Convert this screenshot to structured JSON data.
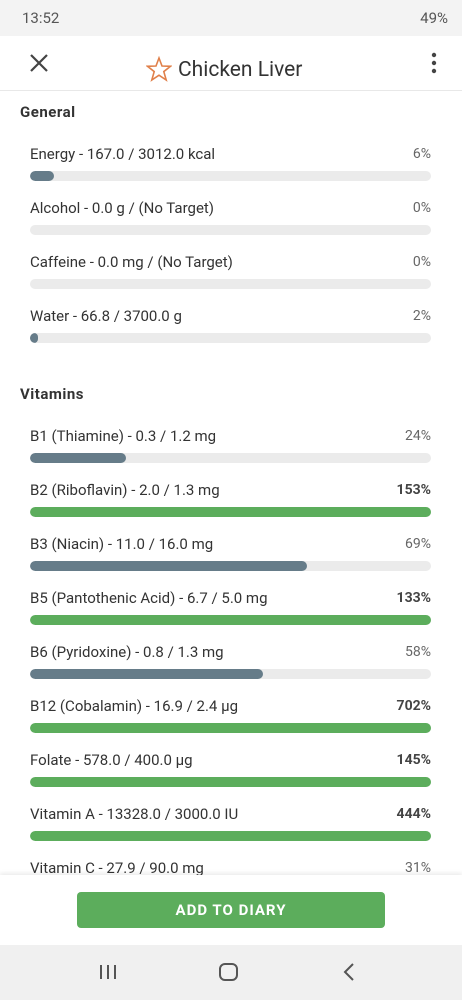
{
  "status_bar": {
    "time": "13:52",
    "battery": "49%"
  },
  "header": {
    "title": "Chicken Liver"
  },
  "sections": [
    {
      "title": "General",
      "items": [
        {
          "label": "Energy - 167.0 / 3012.0 kcal",
          "percent": {
            "value": 6,
            "label": "6%"
          }
        },
        {
          "label": "Alcohol - 0.0 g / (No Target)",
          "percent": {
            "value": 0,
            "label": "0%"
          }
        },
        {
          "label": "Caffeine - 0.0 mg / (No Target)",
          "percent": {
            "value": 0,
            "label": "0%"
          }
        },
        {
          "label": "Water - 66.8 / 3700.0 g",
          "percent": {
            "value": 2,
            "label": "2%"
          }
        }
      ]
    },
    {
      "title": "Vitamins",
      "items": [
        {
          "label": "B1 (Thiamine) - 0.3 / 1.2 mg",
          "percent": {
            "value": 24,
            "label": "24%"
          }
        },
        {
          "label": "B2 (Riboflavin) - 2.0 / 1.3 mg",
          "percent": {
            "value": 153,
            "label": "153%"
          }
        },
        {
          "label": "B3 (Niacin) - 11.0 / 16.0 mg",
          "percent": {
            "value": 69,
            "label": "69%"
          }
        },
        {
          "label": "B5 (Pantothenic Acid) - 6.7 / 5.0 mg",
          "percent": {
            "value": 133,
            "label": "133%"
          }
        },
        {
          "label": "B6 (Pyridoxine) - 0.8 / 1.3 mg",
          "percent": {
            "value": 58,
            "label": "58%"
          }
        },
        {
          "label": "B12 (Cobalamin) - 16.9 / 2.4 µg",
          "percent": {
            "value": 702,
            "label": "702%"
          }
        },
        {
          "label": "Folate - 578.0 / 400.0 µg",
          "percent": {
            "value": 145,
            "label": "145%"
          }
        },
        {
          "label": "Vitamin A - 13328.0 / 3000.0 IU",
          "percent": {
            "value": 444,
            "label": "444%"
          }
        },
        {
          "label": "Vitamin C - 27.9 / 90.0 mg",
          "percent": {
            "value": 31,
            "label": "31%"
          }
        }
      ]
    }
  ],
  "button": {
    "label": "ADD TO DIARY"
  }
}
